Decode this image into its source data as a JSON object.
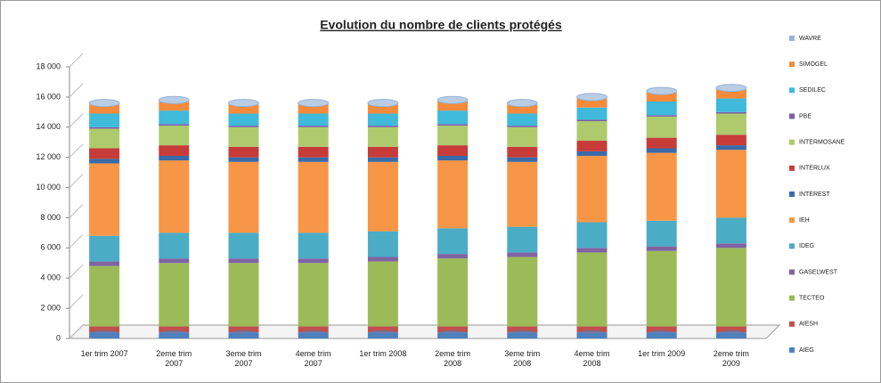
{
  "chart_data": {
    "type": "stacked_bar",
    "title": "Evolution du nombre de clients protégés",
    "categories": [
      "1er trim 2007",
      "2eme trim 2007",
      "3eme trim 2007",
      "4eme trim 2007",
      "1er trim 2008",
      "2eme trim 2008",
      "3eme trim 2008",
      "4eme trim 2008",
      "1er trim 2009",
      "2eme trim 2009"
    ],
    "ylim": [
      0,
      18000
    ],
    "yticks": [
      0,
      {
        "value": 2000,
        "label": "2 000"
      },
      {
        "value": 4000,
        "label": "4 000"
      },
      {
        "value": 6000,
        "label": "6 000"
      },
      {
        "value": 8000,
        "label": "8 000"
      },
      {
        "value": 10000,
        "label": "10 000"
      },
      {
        "value": 12000,
        "label": "12 000"
      },
      {
        "value": 14000,
        "label": "14 000"
      },
      {
        "value": 16000,
        "label": "16 000"
      },
      {
        "value": 18000,
        "label": "18 000"
      }
    ],
    "legend": "right",
    "series": [
      {
        "name": "AIEG",
        "color": "#4f81bd",
        "values": [
          400,
          400,
          400,
          400,
          400,
          400,
          400,
          400,
          400,
          400
        ]
      },
      {
        "name": "AIESH",
        "color": "#c0504d",
        "values": [
          400,
          400,
          400,
          400,
          400,
          400,
          400,
          400,
          400,
          400
        ]
      },
      {
        "name": "TECTEO",
        "color": "#9bbb59",
        "values": [
          4000,
          4200,
          4200,
          4200,
          4300,
          4500,
          4600,
          4900,
          5000,
          5200
        ]
      },
      {
        "name": "GASELWEST",
        "color": "#8064a2",
        "values": [
          300,
          300,
          300,
          300,
          300,
          300,
          300,
          300,
          300,
          300
        ]
      },
      {
        "name": "IDEG",
        "color": "#4bacc6",
        "values": [
          1700,
          1700,
          1700,
          1700,
          1700,
          1700,
          1700,
          1700,
          1700,
          1700
        ]
      },
      {
        "name": "IEH",
        "color": "#f79646",
        "values": [
          4800,
          4800,
          4700,
          4700,
          4600,
          4500,
          4300,
          4400,
          4500,
          4500
        ]
      },
      {
        "name": "INTEREST",
        "color": "#3a6aa8",
        "values": [
          300,
          300,
          300,
          300,
          300,
          300,
          300,
          300,
          300,
          300
        ]
      },
      {
        "name": "INTERLUX",
        "color": "#c73c38",
        "values": [
          700,
          700,
          700,
          700,
          700,
          700,
          700,
          700,
          700,
          700
        ]
      },
      {
        "name": "INTERMOSANE",
        "color": "#aeca6d",
        "values": [
          1300,
          1300,
          1300,
          1300,
          1300,
          1300,
          1300,
          1300,
          1400,
          1400
        ]
      },
      {
        "name": "PBE",
        "color": "#7b5ea6",
        "values": [
          100,
          100,
          100,
          100,
          100,
          100,
          100,
          100,
          100,
          100
        ]
      },
      {
        "name": "SEDILEC",
        "color": "#3fbadb",
        "values": [
          900,
          900,
          800,
          800,
          800,
          900,
          800,
          800,
          900,
          900
        ]
      },
      {
        "name": "SIMOGEL",
        "color": "#f58b3a",
        "values": [
          600,
          600,
          600,
          600,
          600,
          600,
          600,
          600,
          600,
          600
        ]
      },
      {
        "name": "WAVRE",
        "color": "#95b3d7",
        "values": [
          100,
          100,
          100,
          100,
          100,
          100,
          100,
          100,
          100,
          100
        ]
      }
    ]
  }
}
